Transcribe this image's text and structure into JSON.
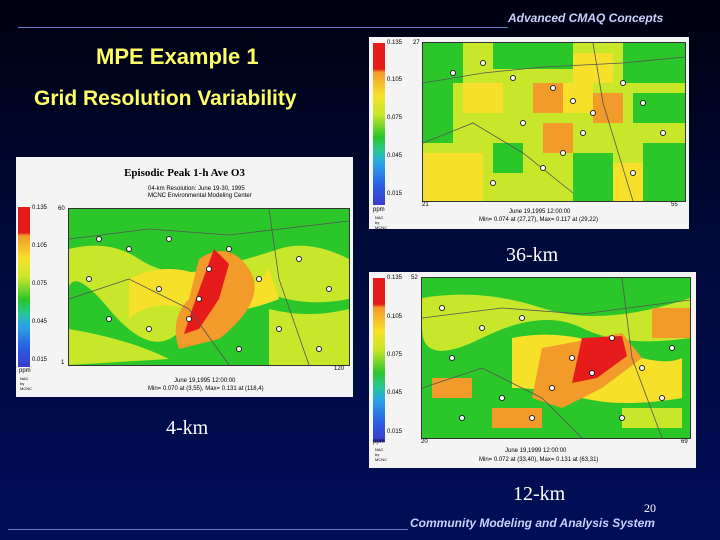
{
  "header": {
    "text": "Advanced CMAQ Concepts"
  },
  "footer": {
    "text": "Community Modeling and Analysis System",
    "slide_number": "20"
  },
  "titles": {
    "line1": "MPE Example 1",
    "line2": "Grid Resolution Variability"
  },
  "colors": {
    "title": "#ffff66",
    "header_text": "#c8d0ff",
    "background_top": "#000010",
    "background_bottom": "#000e58"
  },
  "maps": {
    "km4": {
      "label": "4-km",
      "title": "Episodic Peak 1-h Ave O3",
      "subtitle1": "04-km Resolution: June 19-30, 1995",
      "subtitle2": "MCNC Environmental Modeling Center",
      "scale_ticks": [
        "0.135",
        "0.105",
        "0.075",
        "0.045",
        "0.015"
      ],
      "units": "ppm",
      "corner_tl": "60",
      "corner_bl": "1",
      "corner_br": "120",
      "date": "June 19,1995 12:00:00",
      "minmax": "Min= 0.070 at (3,55), Max= 0.131 at (118,4)"
    },
    "km36": {
      "label": "36-km",
      "scale_ticks": [
        "0.135",
        "0.105",
        "0.075",
        "0.045",
        "0.015"
      ],
      "units": "ppm",
      "corner_tl": "27",
      "corner_bl": "21",
      "corner_br": "55",
      "date": "June 19,1995 12:00:00",
      "minmax": "Min= 0.074 at (27,27), Max= 0.117 at (29,22)"
    },
    "km12": {
      "label": "12-km",
      "scale_ticks": [
        "0.135",
        "0.105",
        "0.075",
        "0.045",
        "0.015"
      ],
      "units": "ppm",
      "corner_tl": "52",
      "corner_bl": "20",
      "corner_br": "69",
      "date": "June 19,1999 12:00:00",
      "minmax": "Min= 0.072 at (33,40), Max= 0.131 at (63,31)"
    }
  }
}
